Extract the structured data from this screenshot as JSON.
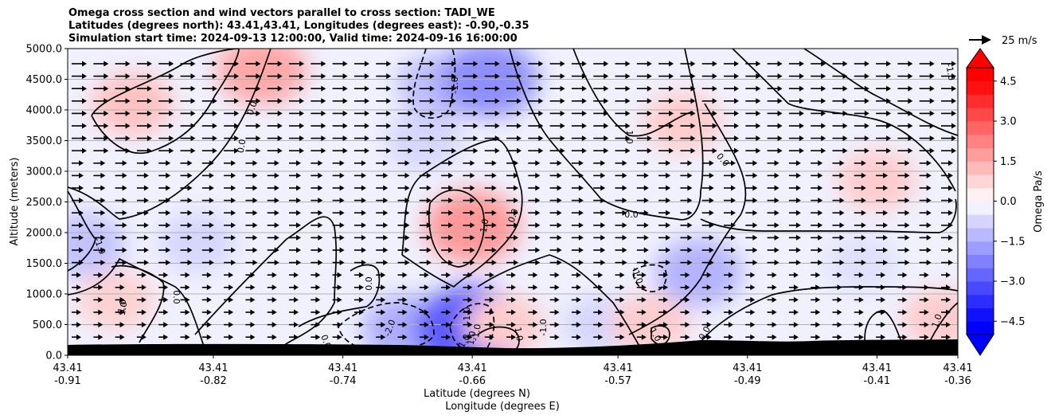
{
  "header": {
    "title_line1": "Omega cross section and wind vectors parallel to cross section: TADI_WE",
    "title_line2": "Latitudes (degrees north): 43.41,43.41, Longitudes (degrees east): -0.90,-0.35",
    "title_line3": "Simulation start time: 2024-09-13 12:00:00, Valid time: 2024-09-16 16:00:00"
  },
  "chart_data": {
    "type": "heatmap",
    "title": "Omega cross section and wind vectors parallel to cross section: TADI_WE",
    "ylabel": "Altitude (meters)",
    "xlabel_lat": "Latitude (degrees N)",
    "xlabel_lon": "Longitude (degrees E)",
    "ylim": [
      0,
      5000
    ],
    "yticks": [
      "0.0",
      "500.0",
      "1000.0",
      "1500.0",
      "2000.0",
      "2500.0",
      "3000.0",
      "3500.0",
      "4000.0",
      "4500.0",
      "5000.0"
    ],
    "xticks": [
      {
        "lat": "43.41",
        "lon": "-0.91"
      },
      {
        "lat": "43.41",
        "lon": "-0.82"
      },
      {
        "lat": "43.41",
        "lon": "-0.74"
      },
      {
        "lat": "43.41",
        "lon": "-0.66"
      },
      {
        "lat": "43.41",
        "lon": "-0.57"
      },
      {
        "lat": "43.41",
        "lon": "-0.49"
      },
      {
        "lat": "43.41",
        "lon": "-0.41"
      },
      {
        "lat": "43.41",
        "lon": "-0.36"
      }
    ],
    "grid": "horizontal",
    "colorbar": {
      "label": "Omega Pa/s",
      "ticks": [
        "−4.5",
        "−3.0",
        "−1.5",
        "0.0",
        "1.5",
        "3.0",
        "4.5"
      ],
      "range": [
        -5,
        5
      ],
      "extend": "both",
      "negative_color": "#0000ff",
      "positive_color": "#ff0000"
    },
    "quiver_key": "25 m/s",
    "contour_labels": [
      "-1.0",
      "0.0",
      "1.0",
      "-2.0",
      "0.0",
      "-1.0",
      "1.0",
      "0.0",
      "1.0",
      "0.0",
      "0.0",
      "-1.0",
      "1.0",
      "0.0",
      "-1.0",
      "1.0",
      "0.0",
      "0.0",
      "0.0",
      "1.0",
      "1.0",
      "-1.0",
      "-1.0",
      "1.0",
      "-1.0",
      "1.0"
    ],
    "cells": [
      {
        "lon": -0.87,
        "alt": 4100,
        "omega": 1.2
      },
      {
        "lon": -0.79,
        "alt": 4650,
        "omega": 1.7
      },
      {
        "lon": -0.69,
        "alt": 3500,
        "omega": -0.8
      },
      {
        "lon": -0.68,
        "alt": 4400,
        "omega": -1.3
      },
      {
        "lon": -0.65,
        "alt": 4500,
        "omega": -2.2
      },
      {
        "lon": -0.66,
        "alt": 2100,
        "omega": 2.0
      },
      {
        "lon": -0.53,
        "alt": 3800,
        "omega": 1.0
      },
      {
        "lon": -0.41,
        "alt": 2850,
        "omega": 1.0
      },
      {
        "lon": -0.9,
        "alt": 1800,
        "omega": -1.2
      },
      {
        "lon": -0.83,
        "alt": 1850,
        "omega": -0.8
      },
      {
        "lon": -0.52,
        "alt": 1350,
        "omega": -1.5
      },
      {
        "lon": -0.42,
        "alt": 1500,
        "omega": -0.6
      },
      {
        "lon": -0.88,
        "alt": 900,
        "omega": 0.9
      },
      {
        "lon": -0.7,
        "alt": 420,
        "omega": -1.6
      },
      {
        "lon": -0.66,
        "alt": 420,
        "omega": -3.2
      },
      {
        "lon": -0.64,
        "alt": 500,
        "omega": 1.0
      },
      {
        "lon": -0.58,
        "alt": 500,
        "omega": -0.8
      },
      {
        "lon": -0.55,
        "alt": 500,
        "omega": 1.0
      },
      {
        "lon": -0.37,
        "alt": 600,
        "omega": 1.0
      }
    ]
  }
}
